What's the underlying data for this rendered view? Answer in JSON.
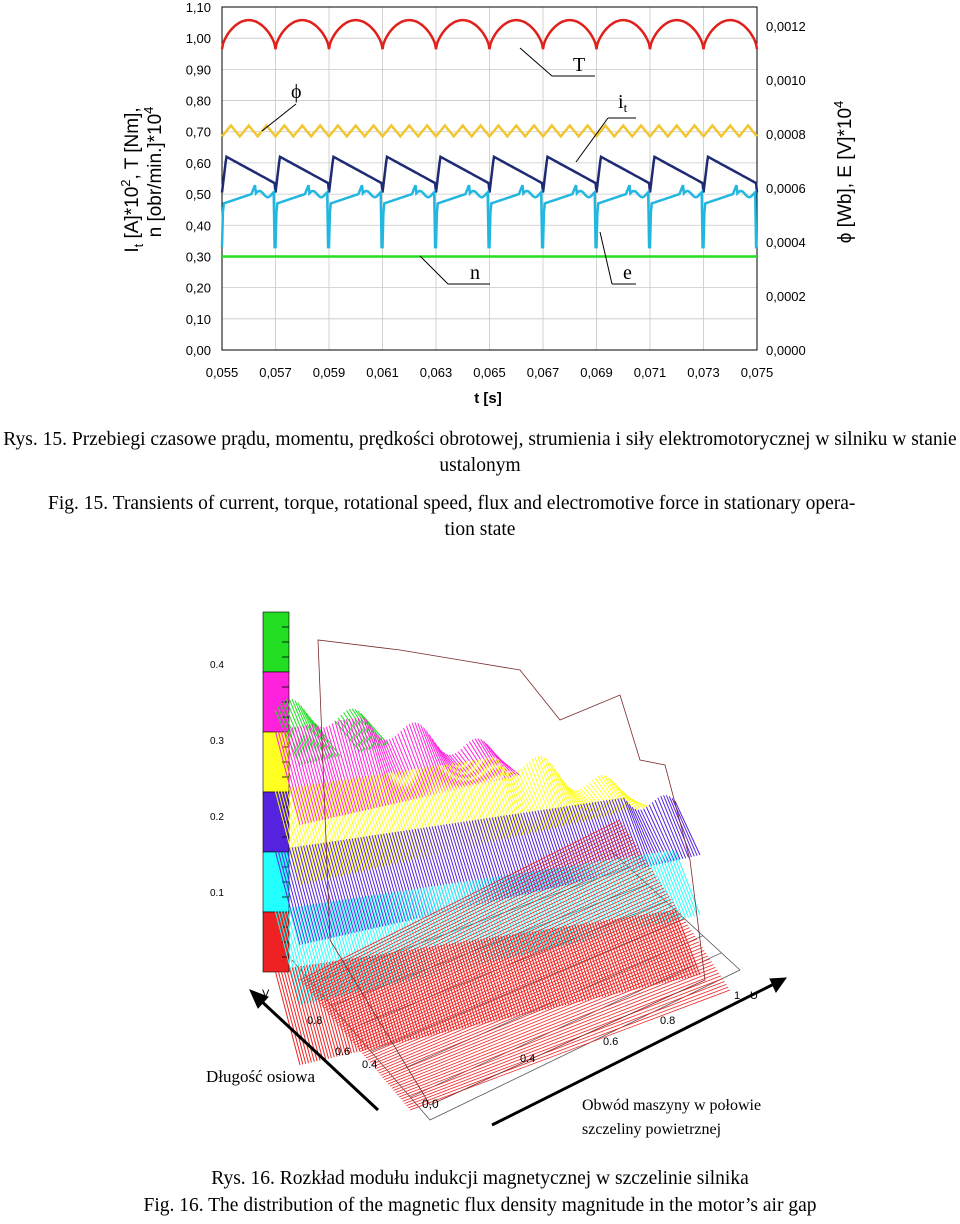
{
  "figure15": {
    "chart_data": {
      "type": "line",
      "xlabel": "t [s]",
      "x_ticks": [
        "0,055",
        "0,057",
        "0,059",
        "0,061",
        "0,063",
        "0,065",
        "0,067",
        "0,069",
        "0,071",
        "0,073",
        "0,075"
      ],
      "xlim": [
        0.055,
        0.075
      ],
      "ylabel_left_1": "I",
      "ylabel_left_1_sub": "t",
      "ylabel_left_1_rest": " [A]*10",
      "ylabel_left_1_sup": "2",
      "ylabel_left_1_tail": ", T [Nm],",
      "ylabel_left_2": "n [obr/min.]*10",
      "ylabel_left_2_sup": "4",
      "y_left_ticks": [
        "0,00",
        "0,10",
        "0,20",
        "0,30",
        "0,40",
        "0,50",
        "0,60",
        "0,70",
        "0,80",
        "0,90",
        "1,00",
        "1,10"
      ],
      "ylim_left": [
        0,
        1.1
      ],
      "ylabel_right": "ϕ [Wb], E [V]*10",
      "ylabel_right_sup": "4",
      "y_right_ticks": [
        "0,0000",
        "0,0002",
        "0,0004",
        "0,0006",
        "0,0008",
        "0,0010",
        "0,0012"
      ],
      "ylim_right": [
        0,
        0.0012
      ],
      "grid": true,
      "periods": 10,
      "series": [
        {
          "name": "T",
          "color": "#e0201b",
          "kind": "ripple",
          "low": 0.965,
          "high": 1.058
        },
        {
          "name": "ϕ",
          "color": "#f2c633",
          "kind": "zigzag",
          "low": 0.685,
          "high": 0.72
        },
        {
          "name": "i",
          "sub": "t",
          "color": "#1e2a73",
          "kind": "sawtooth",
          "low": 0.505,
          "high": 0.62
        },
        {
          "name": "e",
          "color": "#22b7e0",
          "kind": "spike",
          "low": 0.33,
          "high": 0.53
        },
        {
          "name": "n",
          "color": "#22dd22",
          "kind": "flat",
          "value": 0.3
        }
      ]
    },
    "caption_pl": "Rys. 15. Przebiegi czasowe prądu, momentu, prędkości obrotowej, strumienia i siły elektromotorycznej w silniku w stanie ustalonym",
    "caption_en_1": "Fig. 15. Transients of current, torque, rotational speed, flux and electromotive force in stationary opera-",
    "caption_en_2": "tion state"
  },
  "figure16": {
    "chart_data": {
      "type": "surface",
      "colorbar_ticks": [
        "0.4",
        "0.3",
        "0.2",
        "0.1"
      ],
      "colorbar_colors": [
        "#22dd22",
        "#ff22dd",
        "#ffff22",
        "#5522dd",
        "#22ffff",
        "#ee2222"
      ],
      "axis_v_label": "V",
      "axis_v_ticks": [
        "0.8",
        "0.6",
        "0.4"
      ],
      "axis_u_label": "U",
      "axis_u_ticks": [
        "1",
        "0.8",
        "0.6",
        "0.4"
      ],
      "origin_label": "0,0",
      "axis_length_label": "Długość osiowa",
      "axis_circ_label_1": "Obwód maszyny w połowie",
      "axis_circ_label_2": "szczeliny powietrznej"
    },
    "caption_pl": "Rys. 16. Rozkład modułu indukcji magnetycznej w szczelinie silnika",
    "caption_en": "Fig. 16. The distribution of the magnetic flux density magnitude in the motor’s air gap"
  }
}
